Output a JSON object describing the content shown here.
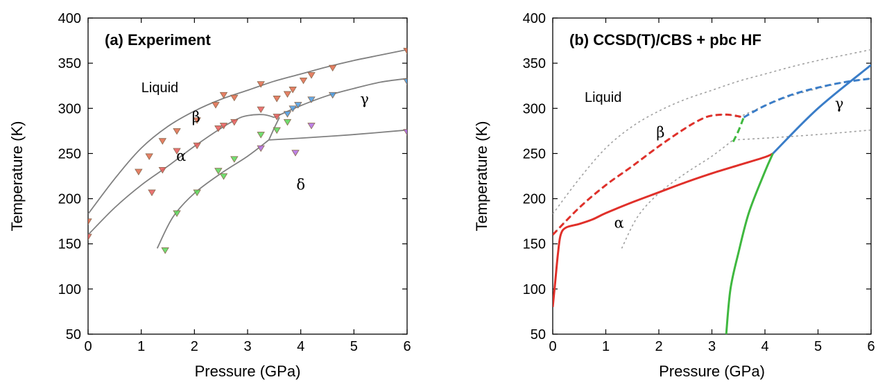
{
  "chart_data": [
    {
      "id": "a",
      "type": "scatter",
      "title": "(a) Experiment",
      "xlabel": "Pressure (GPa)",
      "ylabel": "Temperature (K)",
      "xlim": [
        0,
        6
      ],
      "ylim": [
        50,
        400
      ],
      "xticks": [
        "0",
        "1",
        "2",
        "3",
        "4",
        "5",
        "6"
      ],
      "yticks": [
        "50",
        "100",
        "150",
        "200",
        "250",
        "300",
        "350",
        "400"
      ],
      "grid": false,
      "regions": [
        {
          "label": "Liquid",
          "x": 1.35,
          "y": 318
        },
        {
          "label": "β",
          "x": 2.03,
          "y": 285
        },
        {
          "label": "α",
          "x": 1.75,
          "y": 242
        },
        {
          "label": "δ",
          "x": 4.0,
          "y": 210
        },
        {
          "label": "γ",
          "x": 5.2,
          "y": 305
        }
      ],
      "lines": [
        {
          "name": "liquid-boundary",
          "color": "#808080",
          "style": "solid",
          "points": [
            [
              0,
              183
            ],
            [
              0.5,
              222
            ],
            [
              1.0,
              256
            ],
            [
              1.5,
              280
            ],
            [
              2.0,
              297
            ],
            [
              2.5,
              310
            ],
            [
              3.0,
              320
            ],
            [
              3.5,
              330
            ],
            [
              4.0,
              338
            ],
            [
              4.5,
              346
            ],
            [
              5.0,
              353
            ],
            [
              5.5,
              359
            ],
            [
              6.0,
              365
            ]
          ]
        },
        {
          "name": "alpha-beta-boundary",
          "color": "#808080",
          "style": "solid",
          "points": [
            [
              0,
              160
            ],
            [
              0.5,
              190
            ],
            [
              1.0,
              215
            ],
            [
              1.5,
              236
            ],
            [
              2.0,
              258
            ],
            [
              2.5,
              278
            ],
            [
              2.8,
              288
            ],
            [
              3.0,
              292
            ],
            [
              3.3,
              293
            ],
            [
              3.5,
              290
            ]
          ]
        },
        {
          "name": "beta-gamma-boundary",
          "color": "#808080",
          "style": "solid",
          "points": [
            [
              3.5,
              290
            ],
            [
              4.0,
              303
            ],
            [
              4.5,
              314
            ],
            [
              5.0,
              322
            ],
            [
              5.5,
              329
            ],
            [
              6.0,
              333
            ]
          ]
        },
        {
          "name": "alpha-delta-boundary",
          "color": "#808080",
          "style": "solid",
          "points": [
            [
              1.3,
              145
            ],
            [
              1.6,
              180
            ],
            [
              2.0,
              206
            ],
            [
              2.5,
              228
            ],
            [
              3.0,
              247
            ],
            [
              3.4,
              265
            ]
          ]
        },
        {
          "name": "beta-delta-boundary",
          "color": "#808080",
          "style": "solid",
          "points": [
            [
              3.4,
              265
            ],
            [
              3.5,
              278
            ],
            [
              3.6,
              290
            ]
          ]
        },
        {
          "name": "delta-gamma-boundary",
          "color": "#808080",
          "style": "solid",
          "points": [
            [
              3.4,
              265
            ],
            [
              4.0,
              267
            ],
            [
              5.0,
              271
            ],
            [
              6.0,
              276
            ]
          ]
        }
      ],
      "series": [
        {
          "name": "liquid-beta",
          "color": "#e06a4a",
          "points": [
            [
              0,
              175
            ],
            [
              0.95,
              230
            ],
            [
              1.15,
              247
            ],
            [
              1.4,
              264
            ],
            [
              1.67,
              275
            ],
            [
              2.05,
              287
            ],
            [
              2.4,
              304
            ],
            [
              2.55,
              315
            ],
            [
              2.75,
              312
            ],
            [
              3.25,
              327
            ],
            [
              3.55,
              311
            ],
            [
              3.75,
              316
            ],
            [
              3.85,
              321
            ],
            [
              4.05,
              331
            ],
            [
              4.2,
              337
            ],
            [
              4.6,
              345
            ],
            [
              6.0,
              364
            ]
          ]
        },
        {
          "name": "alpha-beta",
          "color": "#e85a5a",
          "points": [
            [
              0,
              158
            ],
            [
              1.2,
              207
            ],
            [
              1.4,
              232
            ],
            [
              1.67,
              253
            ],
            [
              2.05,
              259
            ],
            [
              2.45,
              278
            ],
            [
              2.55,
              281
            ],
            [
              2.75,
              285
            ],
            [
              3.25,
              299
            ],
            [
              3.55,
              291
            ]
          ]
        },
        {
          "name": "alpha-delta",
          "color": "#58d858",
          "points": [
            [
              1.45,
              143
            ],
            [
              1.67,
              184
            ],
            [
              2.05,
              207
            ],
            [
              2.45,
              231
            ],
            [
              2.55,
              225
            ],
            [
              2.75,
              244
            ],
            [
              3.25,
              271
            ],
            [
              3.55,
              276
            ],
            [
              3.75,
              285
            ]
          ]
        },
        {
          "name": "beta-gamma",
          "color": "#4a9ae0",
          "points": [
            [
              3.75,
              294
            ],
            [
              3.85,
              300
            ],
            [
              3.95,
              304
            ],
            [
              4.2,
              310
            ],
            [
              4.6,
              315
            ],
            [
              6.0,
              330
            ]
          ]
        },
        {
          "name": "delta-gamma",
          "color": "#b06ae0",
          "points": [
            [
              3.25,
              256
            ],
            [
              3.9,
              251
            ],
            [
              4.2,
              281
            ],
            [
              6.0,
              274
            ]
          ]
        }
      ]
    },
    {
      "id": "b",
      "type": "line",
      "title": "(b) CCSD(T)/CBS + pbc HF",
      "xlabel": "Pressure (GPa)",
      "ylabel": "Temperature (K)",
      "xlim": [
        0,
        6
      ],
      "ylim": [
        50,
        400
      ],
      "xticks": [
        "0",
        "1",
        "2",
        "3",
        "4",
        "5",
        "6"
      ],
      "yticks": [
        "50",
        "100",
        "150",
        "200",
        "250",
        "300",
        "350",
        "400"
      ],
      "grid": false,
      "regions": [
        {
          "label": "Liquid",
          "x": 0.95,
          "y": 307
        },
        {
          "label": "β",
          "x": 2.03,
          "y": 268
        },
        {
          "label": "α",
          "x": 1.25,
          "y": 168
        },
        {
          "label": "γ",
          "x": 5.4,
          "y": 300
        }
      ],
      "lines": [
        {
          "name": "exp-liquid",
          "color": "#a0a0a0",
          "style": "dotted",
          "points": [
            [
              0,
              183
            ],
            [
              0.5,
              222
            ],
            [
              1.0,
              256
            ],
            [
              1.5,
              280
            ],
            [
              2.0,
              297
            ],
            [
              2.5,
              310
            ],
            [
              3.0,
              320
            ],
            [
              3.5,
              330
            ],
            [
              4.0,
              338
            ],
            [
              4.5,
              346
            ],
            [
              5.0,
              353
            ],
            [
              5.5,
              359
            ],
            [
              6.0,
              365
            ]
          ]
        },
        {
          "name": "exp-alpha-beta",
          "color": "#a0a0a0",
          "style": "dotted",
          "points": [
            [
              0,
              160
            ],
            [
              0.5,
              190
            ],
            [
              1.0,
              215
            ],
            [
              1.5,
              236
            ],
            [
              2.0,
              258
            ],
            [
              2.5,
              278
            ],
            [
              2.8,
              288
            ],
            [
              3.0,
              292
            ],
            [
              3.3,
              293
            ],
            [
              3.5,
              290
            ]
          ]
        },
        {
          "name": "exp-beta-gamma",
          "color": "#a0a0a0",
          "style": "dotted",
          "points": [
            [
              3.5,
              290
            ],
            [
              4.0,
              303
            ],
            [
              4.5,
              314
            ],
            [
              5.0,
              322
            ],
            [
              5.5,
              329
            ],
            [
              6.0,
              333
            ]
          ]
        },
        {
          "name": "exp-alpha-delta",
          "color": "#a0a0a0",
          "style": "dotted",
          "points": [
            [
              1.3,
              145
            ],
            [
              1.6,
              180
            ],
            [
              2.0,
              206
            ],
            [
              2.5,
              228
            ],
            [
              3.0,
              247
            ],
            [
              3.4,
              265
            ]
          ]
        },
        {
          "name": "exp-delta-gamma",
          "color": "#a0a0a0",
          "style": "dotted",
          "points": [
            [
              3.4,
              265
            ],
            [
              4.0,
              267
            ],
            [
              5.0,
              271
            ],
            [
              6.0,
              276
            ]
          ]
        },
        {
          "name": "alpha-beta-red-dashed",
          "color": "#e0302a",
          "style": "dashed",
          "points": [
            [
              0,
              160
            ],
            [
              0.5,
              190
            ],
            [
              1.0,
              215
            ],
            [
              1.5,
              236
            ],
            [
              2.0,
              258
            ],
            [
              2.5,
              278
            ],
            [
              2.8,
              288
            ],
            [
              3.0,
              292
            ],
            [
              3.3,
              293
            ],
            [
              3.6,
              290
            ]
          ]
        },
        {
          "name": "beta-gamma-blue-dashed",
          "color": "#3a7dc8",
          "style": "dashed",
          "points": [
            [
              3.6,
              290
            ],
            [
              4.0,
              303
            ],
            [
              4.5,
              315
            ],
            [
              5.0,
              323
            ],
            [
              5.5,
              329
            ],
            [
              6.0,
              333
            ]
          ]
        },
        {
          "name": "beta-green-dashed",
          "color": "#3fb83f",
          "style": "dashed",
          "points": [
            [
              3.4,
              263
            ],
            [
              3.5,
              275
            ],
            [
              3.6,
              290
            ]
          ]
        },
        {
          "name": "alpha-red-solid",
          "color": "#e0302a",
          "style": "solid",
          "points": [
            [
              0,
              80
            ],
            [
              0.05,
              110
            ],
            [
              0.1,
              140
            ],
            [
              0.15,
              160
            ],
            [
              0.25,
              168
            ],
            [
              0.5,
              172
            ],
            [
              0.75,
              177
            ],
            [
              1.0,
              184
            ],
            [
              1.5,
              196
            ],
            [
              2.0,
              207
            ],
            [
              2.5,
              218
            ],
            [
              3.0,
              228
            ],
            [
              3.5,
              237
            ],
            [
              4.0,
              246
            ],
            [
              4.15,
              250
            ]
          ]
        },
        {
          "name": "gamma-blue-solid",
          "color": "#3a7dc8",
          "style": "solid",
          "points": [
            [
              4.15,
              250
            ],
            [
              5.0,
              300
            ],
            [
              6.0,
              348
            ]
          ]
        },
        {
          "name": "green-solid",
          "color": "#3fb83f",
          "style": "solid",
          "points": [
            [
              3.27,
              50
            ],
            [
              3.35,
              100
            ],
            [
              3.5,
              140
            ],
            [
              3.7,
              185
            ],
            [
              4.0,
              230
            ],
            [
              4.15,
              250
            ]
          ]
        }
      ]
    }
  ]
}
